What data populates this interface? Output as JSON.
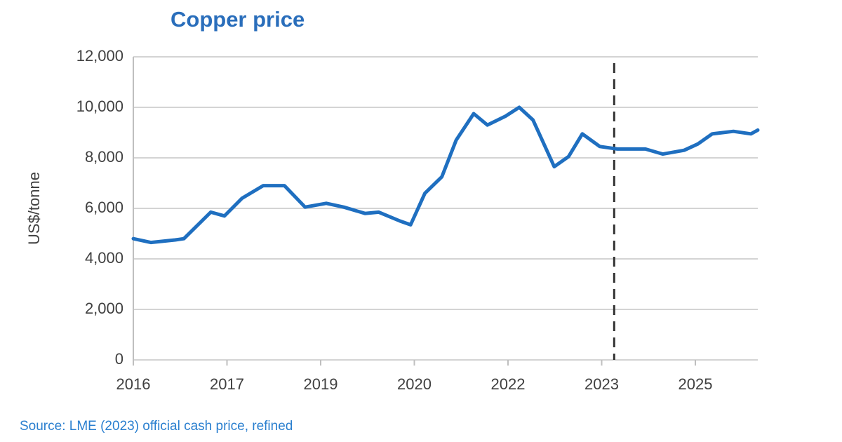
{
  "chart_data": {
    "type": "line",
    "title": "Copper price",
    "y_label": "US$/tonne",
    "source": "Source: LME (2023) official cash price, refined",
    "x": [
      2016.0,
      2016.28,
      2016.67,
      2016.81,
      2017.24,
      2017.46,
      2017.74,
      2018.08,
      2018.42,
      2018.75,
      2019.09,
      2019.37,
      2019.71,
      2019.93,
      2020.27,
      2020.44,
      2020.67,
      2020.94,
      2021.17,
      2021.45,
      2021.67,
      2021.96,
      2022.18,
      2022.4,
      2022.74,
      2022.97,
      2023.19,
      2023.47,
      2023.75,
      2024.2,
      2024.48,
      2024.82,
      2025.04,
      2025.27,
      2025.61,
      2025.89,
      2026.0
    ],
    "values": [
      4800,
      4650,
      4750,
      4800,
      5850,
      5700,
      6400,
      6900,
      6900,
      6050,
      6200,
      6050,
      5800,
      5850,
      5500,
      5350,
      6600,
      7250,
      8700,
      9750,
      9300,
      9650,
      10000,
      9500,
      7650,
      8050,
      8950,
      8450,
      8350,
      8350,
      8150,
      8300,
      8550,
      8950,
      9050,
      8950,
      9100
    ],
    "color": "#1f6fc0",
    "xlim": [
      2016,
      2026
    ],
    "xticks": [
      {
        "value": 2016,
        "label": "2016"
      },
      {
        "value": 2017.5,
        "label": "2017"
      },
      {
        "value": 2019,
        "label": "2019"
      },
      {
        "value": 2020.5,
        "label": "2020"
      },
      {
        "value": 2022,
        "label": "2022"
      },
      {
        "value": 2023.5,
        "label": "2023"
      },
      {
        "value": 2025,
        "label": "2025"
      }
    ],
    "ylim": [
      0,
      12000
    ],
    "yticks": [
      {
        "value": 0,
        "label": "0"
      },
      {
        "value": 2000,
        "label": "2,000"
      },
      {
        "value": 4000,
        "label": "4,000"
      },
      {
        "value": 6000,
        "label": "6,000"
      },
      {
        "value": 8000,
        "label": "8,000"
      },
      {
        "value": 10000,
        "label": "10,000"
      },
      {
        "value": 12000,
        "label": "12,000"
      }
    ],
    "grid": true,
    "forecast_divider_x": 2023.7
  }
}
